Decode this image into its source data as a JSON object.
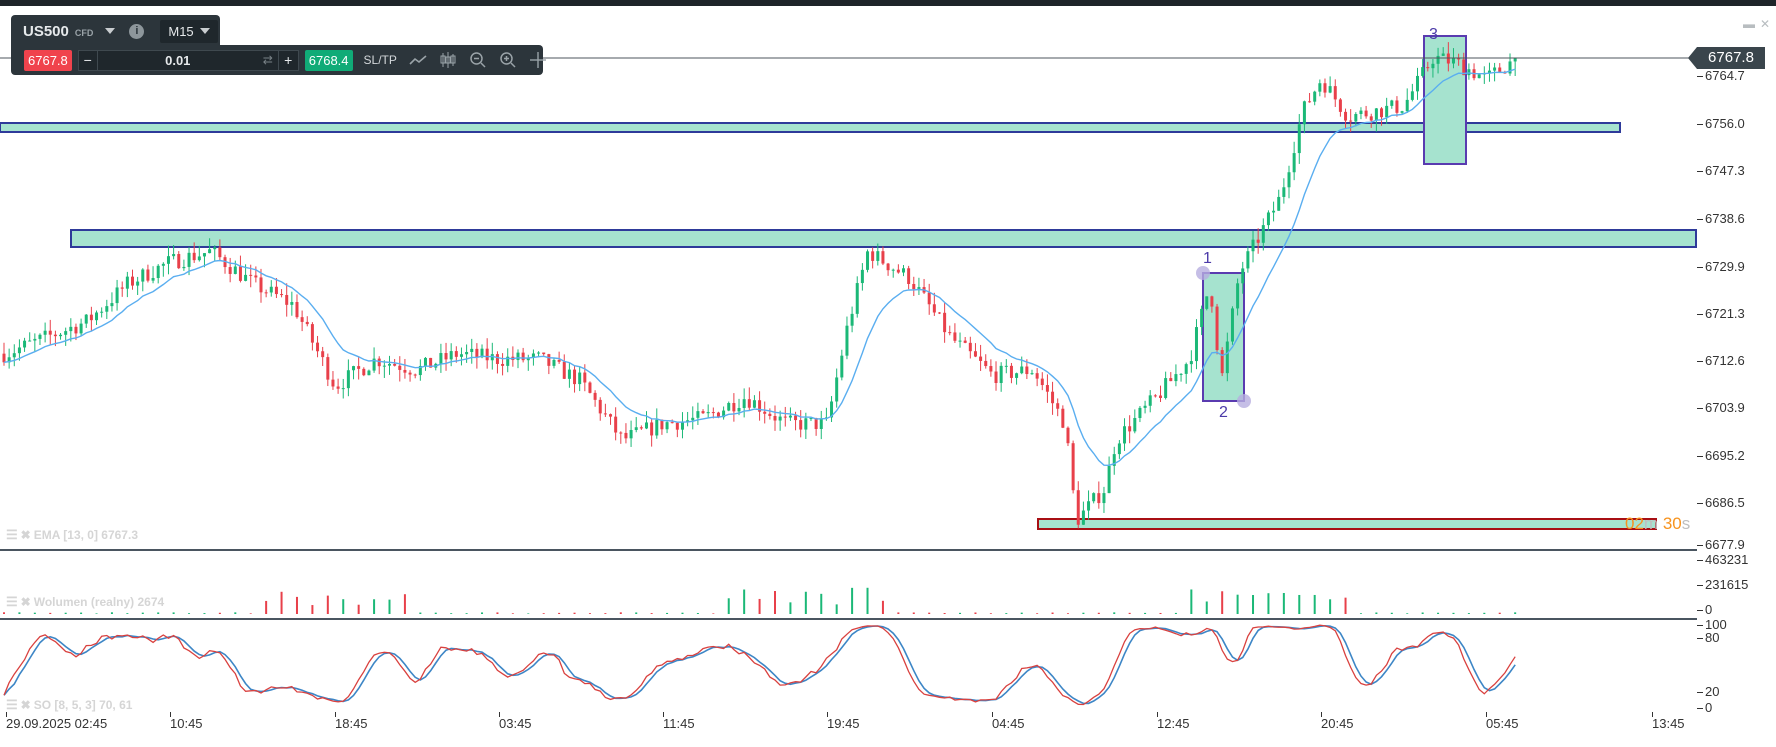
{
  "toolbar": {
    "symbol": "US500",
    "symbol_type": "CFD",
    "timeframe": "M15",
    "bid": "6767.8",
    "ask": "6768.4",
    "volume": "0.01",
    "minus_label": "−",
    "plus_label": "+",
    "sltp_label": "SL/TP",
    "icons": [
      "chevron-down-icon",
      "info-icon",
      "swap-icon",
      "line-chart-icon",
      "candlestick-icon",
      "zoom-out-icon",
      "zoom-in-icon",
      "move-icon"
    ]
  },
  "window_controls": {
    "minimize": "▬",
    "close": "✕"
  },
  "countdown": {
    "min": "02",
    "min_unit": "m",
    "sec": "30",
    "sec_unit": "s"
  },
  "annotations": {
    "label_1": "1",
    "label_2": "2",
    "label_3": "3"
  },
  "chart_data": {
    "type": "candlestick",
    "symbol": "US500",
    "timeframe": "M15",
    "current_price": "6767.8",
    "price_axis": [
      "6764.7",
      "6756.0",
      "6747.3",
      "6738.6",
      "6729.9",
      "6721.3",
      "6712.6",
      "6703.9",
      "6695.2",
      "6686.5",
      "6677.9"
    ],
    "ylim": [
      6677.9,
      6771
    ],
    "time_axis": [
      "29.09.2025 02:45",
      "10:45",
      "18:45",
      "03:45",
      "11:45",
      "19:45",
      "04:45",
      "12:45",
      "20:45",
      "05:45",
      "13:45"
    ],
    "approx_close_path": [
      {
        "t": "29.09 02:45",
        "p": 6713
      },
      {
        "t": "04:45",
        "p": 6716
      },
      {
        "t": "06:45",
        "p": 6719
      },
      {
        "t": "08:45",
        "p": 6726
      },
      {
        "t": "10:45",
        "p": 6730
      },
      {
        "t": "12:45",
        "p": 6732
      },
      {
        "t": "14:45",
        "p": 6726
      },
      {
        "t": "16:45",
        "p": 6722
      },
      {
        "t": "18:45",
        "p": 6707
      },
      {
        "t": "20:45",
        "p": 6712
      },
      {
        "t": "22:45",
        "p": 6710
      },
      {
        "t": "30.09 01:45",
        "p": 6713
      },
      {
        "t": "03:45",
        "p": 6712
      },
      {
        "t": "05:45",
        "p": 6712
      },
      {
        "t": "07:45",
        "p": 6708
      },
      {
        "t": "09:45",
        "p": 6697
      },
      {
        "t": "11:45",
        "p": 6700
      },
      {
        "t": "13:45",
        "p": 6701
      },
      {
        "t": "15:45",
        "p": 6705
      },
      {
        "t": "17:45",
        "p": 6700
      },
      {
        "t": "19:45",
        "p": 6700
      },
      {
        "t": "20:45",
        "p": 6718
      },
      {
        "t": "21:45",
        "p": 6732
      },
      {
        "t": "23:45",
        "p": 6727
      },
      {
        "t": "01.10 01:45",
        "p": 6716
      },
      {
        "t": "04:45",
        "p": 6709
      },
      {
        "t": "06:45",
        "p": 6710
      },
      {
        "t": "08:15",
        "p": 6700
      },
      {
        "t": "08:45",
        "p": 6682
      },
      {
        "t": "10:15",
        "p": 6688
      },
      {
        "t": "10:45",
        "p": 6697
      },
      {
        "t": "12:45",
        "p": 6705
      },
      {
        "t": "14:15",
        "p": 6712
      },
      {
        "t": "15:15",
        "p": 6726
      },
      {
        "t": "15:45",
        "p": 6708
      },
      {
        "t": "16:45",
        "p": 6728
      },
      {
        "t": "18:45",
        "p": 6742
      },
      {
        "t": "19:45",
        "p": 6758
      },
      {
        "t": "20:45",
        "p": 6764
      },
      {
        "t": "22:00",
        "p": 6757
      },
      {
        "t": "02.10 00:45",
        "p": 6759
      },
      {
        "t": "02:15",
        "p": 6768
      },
      {
        "t": "03:15",
        "p": 6767
      },
      {
        "t": "05:45",
        "p": 6764
      },
      {
        "t": "07:15",
        "p": 6768
      }
    ],
    "zones": [
      {
        "name": "upper-zone",
        "from": 6754.8,
        "to": 6756.5
      },
      {
        "name": "middle-zone",
        "from": 6733.5,
        "to": 6736.6
      },
      {
        "name": "lower-zone",
        "from": 6680.3,
        "to": 6682.2
      }
    ],
    "colors": {
      "up": "#1bb877",
      "down": "#e8404a",
      "ema": "#5aaef0",
      "zone_fill": "#a6e3cf",
      "zone_border": "#2e3a9a",
      "lower_zone_border": "#a80f14",
      "so_k": "#d9413f",
      "so_d": "#3d86c6"
    },
    "indicators": {
      "ema": {
        "label": "EMA [13, 0] 6767.3"
      },
      "volume": {
        "label": "Wolumen (realny) 2674",
        "axis": [
          "463231",
          "231615",
          "0"
        ]
      },
      "stochastic": {
        "label": "SO [8, 5, 3] 70, 61",
        "axis": [
          "100",
          "80",
          "20",
          "0"
        ]
      }
    }
  }
}
